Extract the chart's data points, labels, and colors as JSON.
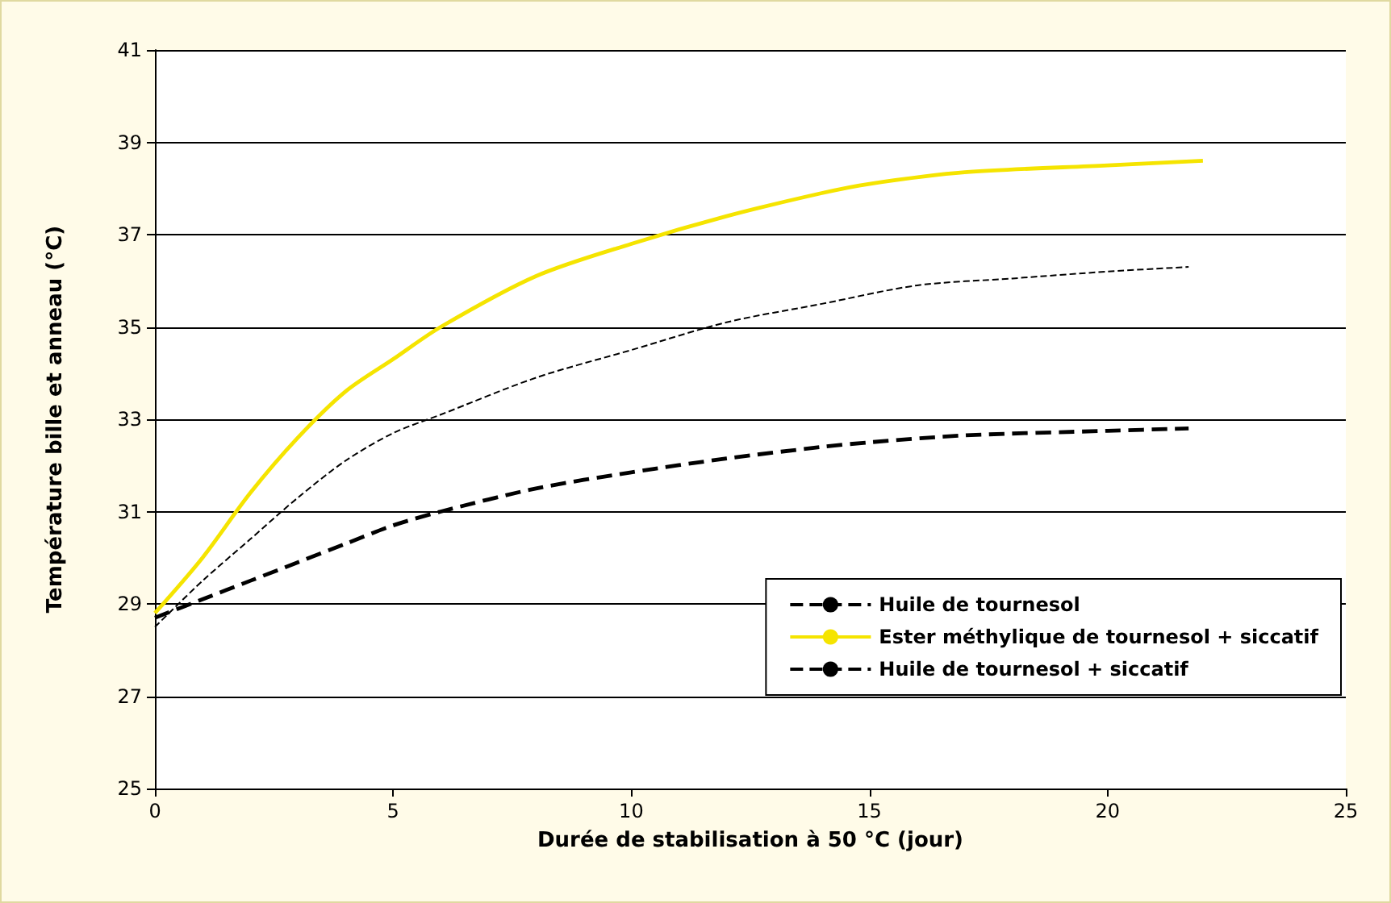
{
  "chart_data": {
    "type": "line",
    "xlabel": "Durée de stabilisation à 50 °C (jour)",
    "ylabel": "Température bille et anneau (°C)",
    "xlim": [
      0,
      25
    ],
    "xticks": [
      0,
      5,
      10,
      15,
      20,
      25
    ],
    "ylim": [
      25,
      41
    ],
    "yticks": [
      25,
      27,
      29,
      31,
      33,
      35,
      37,
      39,
      41
    ],
    "grid": "y",
    "legend": "bottom right",
    "marker": "none",
    "series": [
      {
        "name": "Huile de tournesol",
        "color": "#000000",
        "line_style": "dashed",
        "x": [
          0,
          1,
          2,
          3,
          4,
          5,
          6,
          8,
          10,
          12,
          14,
          15,
          17,
          20,
          21.7
        ],
        "values": [
          28.7,
          29.1,
          29.5,
          29.9,
          30.3,
          30.7,
          31.0,
          31.5,
          31.85,
          32.15,
          32.4,
          32.5,
          32.65,
          32.75,
          32.8
        ]
      },
      {
        "name": "Ester méthylique de tournesol + siccatif",
        "color": "#f5e400",
        "line_style": "solid",
        "x": [
          0,
          1,
          2,
          3,
          4,
          5,
          6,
          8,
          10,
          12,
          14,
          15,
          17,
          20,
          22
        ],
        "values": [
          28.8,
          30.0,
          31.4,
          32.6,
          33.6,
          34.3,
          35.0,
          36.1,
          36.8,
          37.4,
          37.9,
          38.1,
          38.35,
          38.5,
          38.6
        ]
      },
      {
        "name": "Huile de tournesol + siccatif",
        "color": "#000000",
        "line_style": "dashed",
        "x": [
          0,
          1,
          2,
          3,
          4,
          5,
          6,
          8,
          10,
          12,
          14,
          16,
          18,
          20,
          21.7
        ],
        "values": [
          28.5,
          29.5,
          30.4,
          31.3,
          32.1,
          32.7,
          33.1,
          33.9,
          34.5,
          35.1,
          35.5,
          35.9,
          36.05,
          36.2,
          36.3
        ]
      }
    ]
  }
}
